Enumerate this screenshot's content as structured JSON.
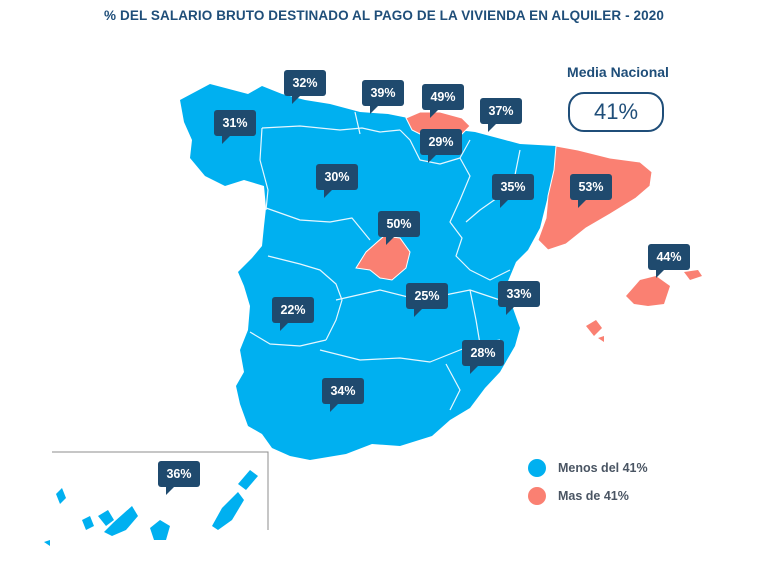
{
  "title": "% DEL SALARIO BRUTO DESTINADO AL PAGO DE LA VIVIENDA EN ALQUILER - 2020",
  "national": {
    "label": "Media Nacional",
    "value": "41%"
  },
  "colors": {
    "below": "#00b0f0",
    "above": "#fa8072",
    "callout": "#1f4a6e",
    "text": "#1f4e79"
  },
  "legend": [
    {
      "label": "Menos del 41%",
      "category": "below"
    },
    {
      "label": "Mas de 41%",
      "category": "above"
    }
  ],
  "regions": [
    {
      "value": "31%",
      "category": "below"
    },
    {
      "value": "32%",
      "category": "below"
    },
    {
      "value": "39%",
      "category": "below"
    },
    {
      "value": "49%",
      "category": "above"
    },
    {
      "value": "37%",
      "category": "below"
    },
    {
      "value": "29%",
      "category": "below"
    },
    {
      "value": "30%",
      "category": "below"
    },
    {
      "value": "35%",
      "category": "below"
    },
    {
      "value": "53%",
      "category": "above"
    },
    {
      "value": "50%",
      "category": "above"
    },
    {
      "value": "44%",
      "category": "above"
    },
    {
      "value": "22%",
      "category": "below"
    },
    {
      "value": "25%",
      "category": "below"
    },
    {
      "value": "33%",
      "category": "below"
    },
    {
      "value": "28%",
      "category": "below"
    },
    {
      "value": "34%",
      "category": "below"
    },
    {
      "value": "36%",
      "category": "below"
    }
  ]
}
